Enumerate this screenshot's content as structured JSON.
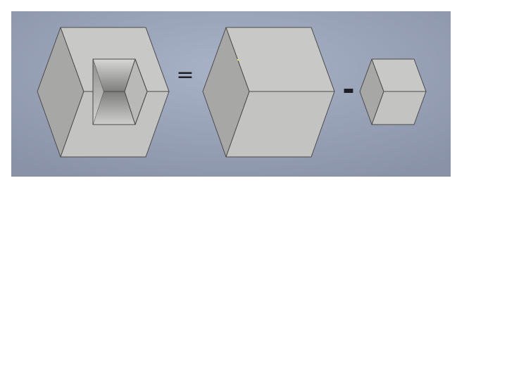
{
  "figure": {
    "description_hidden": "",
    "operators": {
      "equals": "=",
      "minus": "-"
    },
    "shapes": [
      {
        "name": "resulting-shape",
        "kind": "cube-with-corner-cut"
      },
      {
        "name": "large-cube",
        "kind": "cube"
      },
      {
        "name": "small-cube",
        "kind": "cube"
      }
    ],
    "colors": {
      "viewport_center": "#a8b2c6",
      "viewport_edge": "#8a93a8",
      "face_top": "#c8c8c6",
      "face_left": "#a7a7a5",
      "face_right": "#c3c3c1",
      "edge": "#4a4a4a",
      "operator": "#1e1f24"
    }
  }
}
